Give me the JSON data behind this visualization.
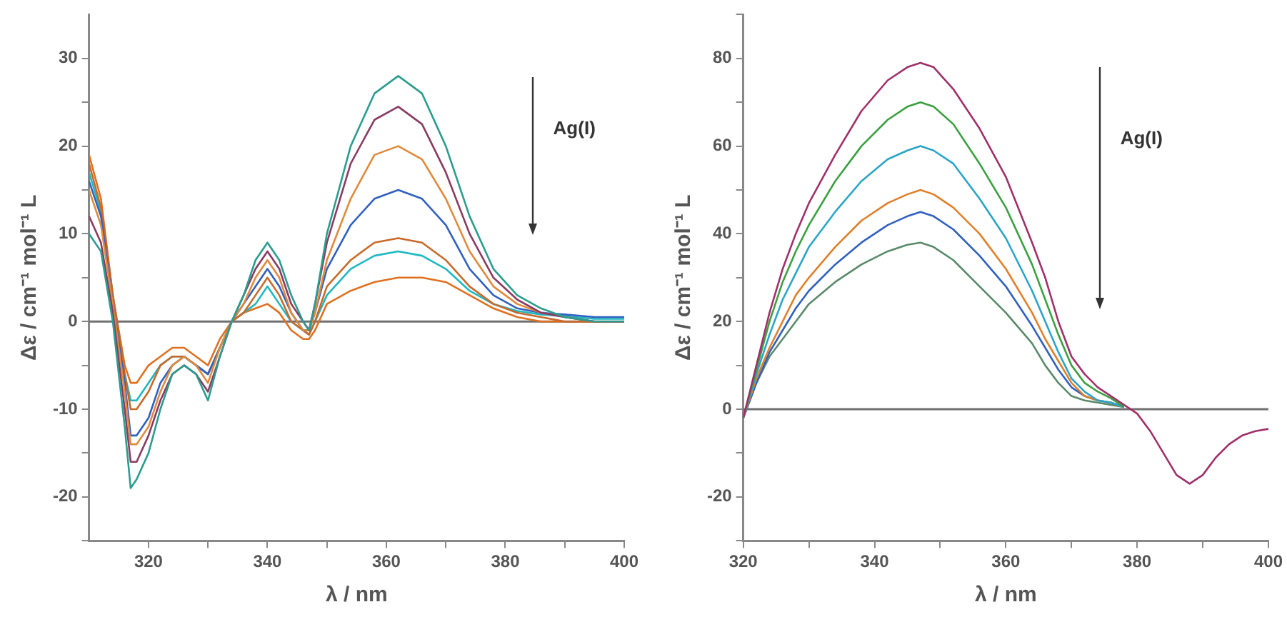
{
  "chart_data": [
    {
      "type": "line",
      "xlabel": "λ / nm",
      "ylabel": "Δε / cm⁻¹ mol⁻¹ L",
      "marker": "none",
      "x": [
        310,
        312,
        314,
        316,
        317,
        318,
        320,
        322,
        324,
        326,
        328,
        330,
        332,
        334,
        336,
        338,
        340,
        342,
        344,
        346,
        347,
        348,
        350,
        354,
        358,
        362,
        366,
        370,
        374,
        378,
        382,
        386,
        390,
        395,
        400
      ],
      "series": [
        {
          "color": "#2a9d8f",
          "values": [
            10,
            8,
            0,
            -12,
            -19,
            -18,
            -15,
            -10,
            -6,
            -5,
            -6,
            -9,
            -4,
            0,
            3,
            7,
            9,
            7,
            3,
            0,
            -1,
            2,
            10,
            20,
            26,
            28,
            26,
            20,
            12,
            6,
            3,
            1.5,
            0.5,
            0,
            0
          ]
        },
        {
          "color": "#8b3a62",
          "values": [
            12,
            9,
            1,
            -10,
            -16,
            -16,
            -13,
            -9,
            -6,
            -5,
            -6,
            -8,
            -4,
            0,
            3,
            6,
            8,
            6,
            2,
            0,
            -1,
            2,
            9,
            18,
            23,
            24.5,
            22.5,
            17,
            10,
            5,
            2.5,
            1,
            0.5,
            0,
            0
          ]
        },
        {
          "color": "#e08a3c",
          "values": [
            15,
            11,
            2,
            -8,
            -14,
            -14,
            -12,
            -8,
            -5,
            -4,
            -5,
            -7,
            -3,
            0,
            2,
            5,
            7,
            5,
            1,
            -1,
            -1,
            1,
            7,
            14,
            19,
            20,
            18.5,
            14,
            8,
            4,
            2,
            1,
            0.5,
            0,
            0
          ]
        },
        {
          "color": "#3060c0",
          "values": [
            16,
            12,
            2,
            -7,
            -13,
            -13,
            -11,
            -7,
            -5,
            -4,
            -5,
            -6,
            -3,
            0,
            2,
            4,
            6,
            4,
            1,
            -1,
            -1,
            1,
            6,
            11,
            14,
            15,
            14,
            11,
            6,
            3,
            1.5,
            1,
            0.8,
            0.5,
            0.5
          ]
        },
        {
          "color": "#c8692a",
          "values": [
            18,
            13,
            3,
            -6,
            -10,
            -10,
            -8,
            -5,
            -4,
            -4,
            -5,
            -6,
            -3,
            0,
            1,
            3,
            5,
            3,
            0,
            -1,
            -1.5,
            0,
            4,
            7,
            9,
            9.5,
            9,
            7,
            4,
            2,
            1,
            0.5,
            0,
            0,
            0
          ]
        },
        {
          "color": "#1fb8c0",
          "values": [
            17,
            12.5,
            3,
            -6,
            -9,
            -9,
            -7,
            -5,
            -4,
            -4,
            -5,
            -6,
            -3,
            0,
            1,
            2,
            4,
            2,
            0,
            -1,
            -1.5,
            0,
            3,
            6,
            7.5,
            8,
            7.5,
            6,
            3.5,
            2,
            1.2,
            0.8,
            0.6,
            0.3,
            0.3
          ]
        },
        {
          "color": "#e07020",
          "values": [
            19,
            14,
            3,
            -5,
            -7,
            -7,
            -5,
            -4,
            -3,
            -3,
            -4,
            -5,
            -2,
            0,
            1,
            1.5,
            2,
            1,
            -1,
            -2,
            -2,
            -1,
            2,
            3.5,
            4.5,
            5,
            5,
            4.5,
            3,
            1.5,
            0.5,
            0,
            0,
            0,
            0
          ]
        }
      ],
      "xlim": [
        310,
        400
      ],
      "xticks": [
        320,
        {
          "value": 330,
          "label": null
        },
        340,
        {
          "value": 350,
          "label": null
        },
        360,
        {
          "value": 370,
          "label": null
        },
        380,
        {
          "value": 390,
          "label": null
        },
        400
      ],
      "ylim": [
        -25,
        35
      ],
      "yticks": [
        {
          "value": -25,
          "label": null
        },
        -20,
        {
          "value": -15,
          "label": null
        },
        -10,
        {
          "value": -5,
          "label": null
        },
        0,
        {
          "value": 5,
          "label": null
        },
        10,
        {
          "value": 15,
          "label": null
        },
        20,
        {
          "value": 25,
          "label": null
        },
        30
      ],
      "ref_lines": [
        {
          "axis": "y",
          "value": 0,
          "color": "#707070"
        }
      ],
      "annotations": [
        "Ag(I)"
      ]
    },
    {
      "type": "line",
      "xlabel": "λ / nm",
      "ylabel": "Δε / cm⁻¹ mol⁻¹ L",
      "marker": "none",
      "x": [
        320,
        322,
        324,
        326,
        328,
        330,
        334,
        338,
        342,
        345,
        347,
        349,
        352,
        356,
        360,
        364,
        366,
        368,
        370,
        372,
        374,
        376,
        378,
        380,
        382,
        384,
        386,
        388,
        390,
        392,
        394,
        396,
        398,
        400
      ],
      "series": [
        {
          "color": "#a0306a",
          "values": [
            -2,
            10,
            22,
            32,
            40,
            47,
            58,
            68,
            75,
            78,
            79,
            78,
            73,
            64,
            53,
            38,
            30,
            20,
            12,
            8,
            5,
            3,
            1,
            -1,
            -5,
            -10,
            -15,
            -17,
            -15,
            -11,
            -8,
            -6,
            -5,
            -4.5
          ]
        },
        {
          "color": "#3aa040",
          "values": [
            -2,
            9,
            20,
            29,
            36,
            42,
            52,
            60,
            66,
            69,
            70,
            69,
            65,
            56,
            46,
            33,
            25,
            17,
            10,
            6,
            4,
            2.5,
            0.5,
            null,
            null,
            null,
            null,
            null,
            null,
            null,
            null,
            null,
            null,
            null
          ]
        },
        {
          "color": "#2aa5c8",
          "values": [
            -2,
            8,
            17,
            25,
            31,
            37,
            45,
            52,
            57,
            59,
            60,
            59,
            56,
            48,
            39,
            27,
            20,
            13,
            7,
            4,
            2,
            1.5,
            0.5,
            null,
            null,
            null,
            null,
            null,
            null,
            null,
            null,
            null,
            null,
            null
          ]
        },
        {
          "color": "#e0802a",
          "values": [
            -2,
            7,
            14,
            20,
            26,
            30,
            37,
            43,
            47,
            49,
            50,
            49,
            46,
            40,
            32,
            22,
            16,
            11,
            6,
            3,
            2,
            1.5,
            0.5,
            null,
            null,
            null,
            null,
            null,
            null,
            null,
            null,
            null,
            null,
            null
          ]
        },
        {
          "color": "#3060c0",
          "values": [
            -2,
            6,
            13,
            18,
            23,
            27,
            33,
            38,
            42,
            44,
            45,
            44,
            41,
            35,
            28,
            19,
            14,
            9,
            5,
            3,
            2,
            1.5,
            0.5,
            null,
            null,
            null,
            null,
            null,
            null,
            null,
            null,
            null,
            null,
            null
          ]
        },
        {
          "color": "#5a8a6a",
          "values": [
            -2,
            6,
            12,
            16,
            20,
            24,
            29,
            33,
            36,
            37.5,
            38,
            37,
            34,
            28,
            22,
            15,
            10,
            6,
            3,
            2,
            1.5,
            1,
            0.5,
            null,
            null,
            null,
            null,
            null,
            null,
            null,
            null,
            null,
            null,
            null
          ]
        }
      ],
      "xlim": [
        320,
        400
      ],
      "xticks": [
        320,
        {
          "value": 330,
          "label": null
        },
        340,
        {
          "value": 350,
          "label": null
        },
        360,
        {
          "value": 370,
          "label": null
        },
        380,
        {
          "value": 390,
          "label": null
        },
        400
      ],
      "ylim": [
        -30,
        90
      ],
      "yticks": [
        {
          "value": -30,
          "label": null
        },
        -20,
        {
          "value": -10,
          "label": null
        },
        0,
        {
          "value": 10,
          "label": null
        },
        20,
        {
          "value": 30,
          "label": null
        },
        40,
        {
          "value": 50,
          "label": null
        },
        60,
        {
          "value": 70,
          "label": null
        },
        80,
        {
          "value": 90,
          "label": null
        }
      ],
      "ref_lines": [
        {
          "axis": "y",
          "value": 0,
          "color": "#707070"
        }
      ],
      "annotations": [
        "Ag(I)"
      ]
    }
  ]
}
